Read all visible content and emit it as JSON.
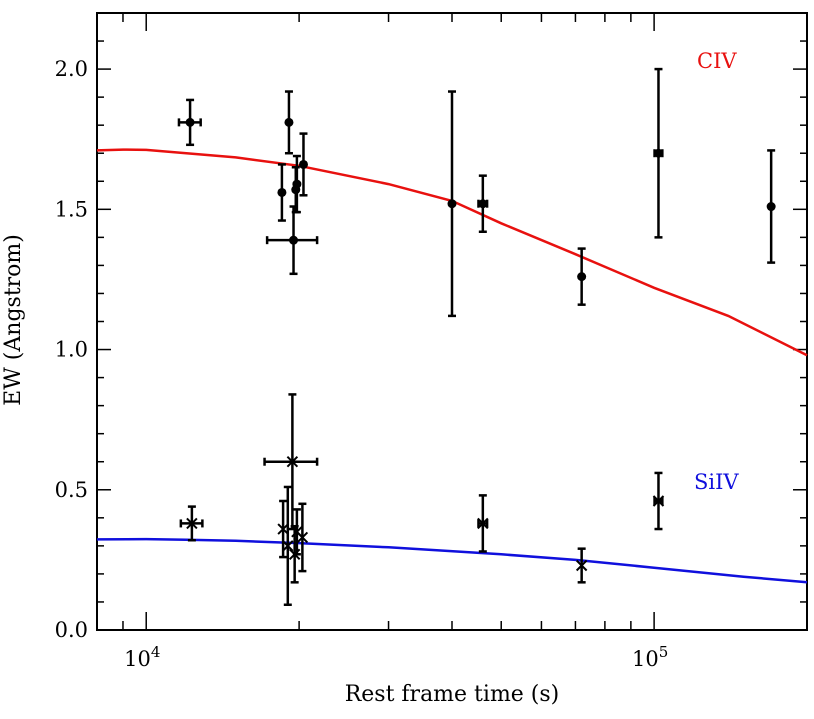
{
  "chart_data": {
    "type": "scatter",
    "xlabel": "Rest frame time (s)",
    "ylabel": "EW (Angstrom)",
    "xscale": "log",
    "xlim": [
      8000,
      200000
    ],
    "ylim": [
      0.0,
      2.2
    ],
    "x_tick_labels": [
      {
        "value": 10000,
        "base": "10",
        "exp": "4"
      },
      {
        "value": 100000,
        "base": "10",
        "exp": "5"
      }
    ],
    "y_ticks": [
      0.0,
      0.5,
      1.0,
      1.5,
      2.0
    ],
    "y_tick_labels": [
      "0.0",
      "0.5",
      "1.0",
      "1.5",
      "2.0"
    ],
    "grid": false,
    "series": [
      {
        "name": "CIV",
        "color": "#e8110f",
        "marker": "circle",
        "points": [
          {
            "x": 12200,
            "y": 1.81,
            "yerr": 0.08,
            "xerr": [
              600,
              600
            ]
          },
          {
            "x": 18500,
            "y": 1.56,
            "yerr": 0.1,
            "xerr": [
              0,
              0
            ]
          },
          {
            "x": 19100,
            "y": 1.81,
            "yerr": 0.11,
            "xerr": [
              0,
              0
            ]
          },
          {
            "x": 19500,
            "y": 1.39,
            "yerr": 0.12,
            "xerr": [
              2200,
              2200
            ]
          },
          {
            "x": 19700,
            "y": 1.57,
            "yerr": 0.08,
            "xerr": [
              0,
              0
            ]
          },
          {
            "x": 19800,
            "y": 1.59,
            "yerr": 0.1,
            "xerr": [
              0,
              0
            ]
          },
          {
            "x": 20400,
            "y": 1.66,
            "yerr": 0.11,
            "xerr": [
              0,
              0
            ]
          },
          {
            "x": 40000,
            "y": 1.52,
            "yerr": 0.4,
            "xerr": [
              0,
              0
            ]
          },
          {
            "x": 46000,
            "y": 1.52,
            "yerr": 0.1,
            "xerr": [
              900,
              900
            ]
          },
          {
            "x": 72000,
            "y": 1.26,
            "yerr": 0.1,
            "xerr": [
              0,
              0
            ]
          },
          {
            "x": 102000,
            "y": 1.7,
            "yerr": 0.3,
            "xerr": [
              1800,
              1800
            ]
          },
          {
            "x": 170000,
            "y": 1.51,
            "yerr": 0.2,
            "xerr": [
              0,
              0
            ]
          }
        ],
        "model": {
          "x": [
            8000,
            9000,
            10000,
            12000,
            15000,
            20000,
            30000,
            40000,
            50000,
            70000,
            100000,
            140000,
            200000
          ],
          "y": [
            1.71,
            1.713,
            1.712,
            1.7,
            1.685,
            1.655,
            1.59,
            1.53,
            1.45,
            1.34,
            1.22,
            1.12,
            0.98
          ]
        }
      },
      {
        "name": "SiIV",
        "color": "#1010dd",
        "marker": "cross",
        "points": [
          {
            "x": 12300,
            "y": 0.38,
            "yerr": 0.06,
            "xerr": [
              600,
              600
            ]
          },
          {
            "x": 18600,
            "y": 0.36,
            "yerr": 0.1,
            "xerr": [
              0,
              0
            ]
          },
          {
            "x": 19000,
            "y": 0.3,
            "yerr": 0.21,
            "xerr": [
              0,
              0
            ]
          },
          {
            "x": 19400,
            "y": 0.6,
            "yerr": 0.24,
            "xerr": [
              2300,
              2300
            ]
          },
          {
            "x": 19600,
            "y": 0.27,
            "yerr": 0.1,
            "xerr": [
              0,
              0
            ]
          },
          {
            "x": 19800,
            "y": 0.35,
            "yerr": 0.08,
            "xerr": [
              0,
              0
            ]
          },
          {
            "x": 20300,
            "y": 0.33,
            "yerr": 0.12,
            "xerr": [
              0,
              0
            ]
          },
          {
            "x": 46000,
            "y": 0.38,
            "yerr": 0.1,
            "xerr": [
              900,
              900
            ]
          },
          {
            "x": 72000,
            "y": 0.23,
            "yerr": 0.06,
            "xerr": [
              0,
              0
            ]
          },
          {
            "x": 102000,
            "y": 0.46,
            "yerr": 0.1,
            "xerr": [
              1800,
              1800
            ]
          }
        ],
        "model": {
          "x": [
            8000,
            10000,
            12000,
            15000,
            20000,
            30000,
            50000,
            70000,
            100000,
            150000,
            200000
          ],
          "y": [
            0.323,
            0.324,
            0.322,
            0.318,
            0.31,
            0.295,
            0.27,
            0.25,
            0.222,
            0.19,
            0.17
          ]
        }
      }
    ]
  }
}
